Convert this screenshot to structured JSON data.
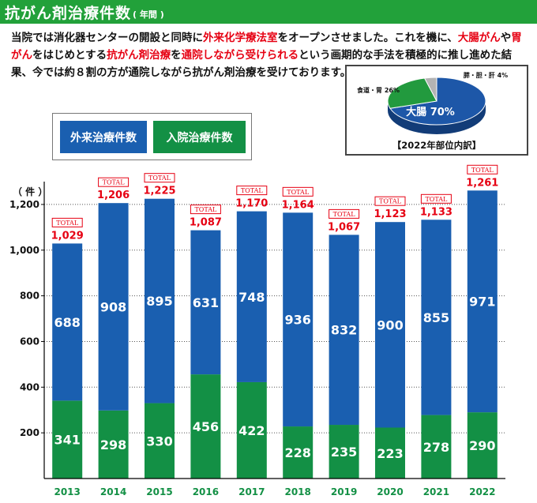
{
  "header": {
    "title": "抗がん剤治療件数",
    "subtitle": "( 年間 )"
  },
  "description": {
    "p1": "当院では消化器センターの開設と同時に",
    "h1": "外来化学療法室",
    "p2": "をオープンさせました。これを機に、",
    "h2": "大腸がん",
    "p3": "や",
    "h3": "胃がん",
    "p4": "をはじめとする",
    "h4": "抗がん剤治療",
    "p5": "を",
    "h5": "通院しながら受けられる",
    "p6": "という画期的な手法を積極的に推し進めた結果、今では約８割の方が通院しながら抗がん剤治療を受けております。"
  },
  "pie": {
    "caption": "【2022年部位内訳】",
    "slices": [
      {
        "label": "大腸 70%",
        "value": 70,
        "color": "#1d57a8"
      },
      {
        "label": "食道・胃 26%",
        "value": 26,
        "color": "#229a3e"
      },
      {
        "label": "膵・胆・肝 4%",
        "value": 4,
        "color": "#b3b3b3"
      }
    ]
  },
  "legend": {
    "outpatient": "外来治療件数",
    "inpatient": "入院治療件数"
  },
  "colors": {
    "outpatient": "#1a5fb0",
    "inpatient": "#139045",
    "total_label": "#e60012",
    "title_bar": "#22a13a"
  },
  "chart_data": {
    "type": "bar",
    "stacked": true,
    "unit_label": "（ 件 ）",
    "total_tag": "TOTAL",
    "categories": [
      "2013",
      "2014",
      "2015",
      "2016",
      "2017",
      "2018",
      "2019",
      "2020",
      "2021",
      "2022"
    ],
    "series": [
      {
        "name": "入院治療件数",
        "values": [
          341,
          298,
          330,
          456,
          422,
          228,
          235,
          223,
          278,
          290
        ]
      },
      {
        "name": "外来治療件数",
        "values": [
          688,
          908,
          895,
          631,
          748,
          936,
          832,
          900,
          855,
          971
        ]
      }
    ],
    "totals": [
      "1,029",
      "1,206",
      "1,225",
      "1,087",
      "1,170",
      "1,164",
      "1,067",
      "1,123",
      "1,133",
      "1,261"
    ],
    "ylim": [
      0,
      1300
    ],
    "yticks": [
      200,
      400,
      600,
      800,
      1000,
      1200
    ],
    "ytick_labels": [
      "200",
      "400",
      "600",
      "800",
      "1,000",
      "1,200"
    ],
    "grid": true
  }
}
